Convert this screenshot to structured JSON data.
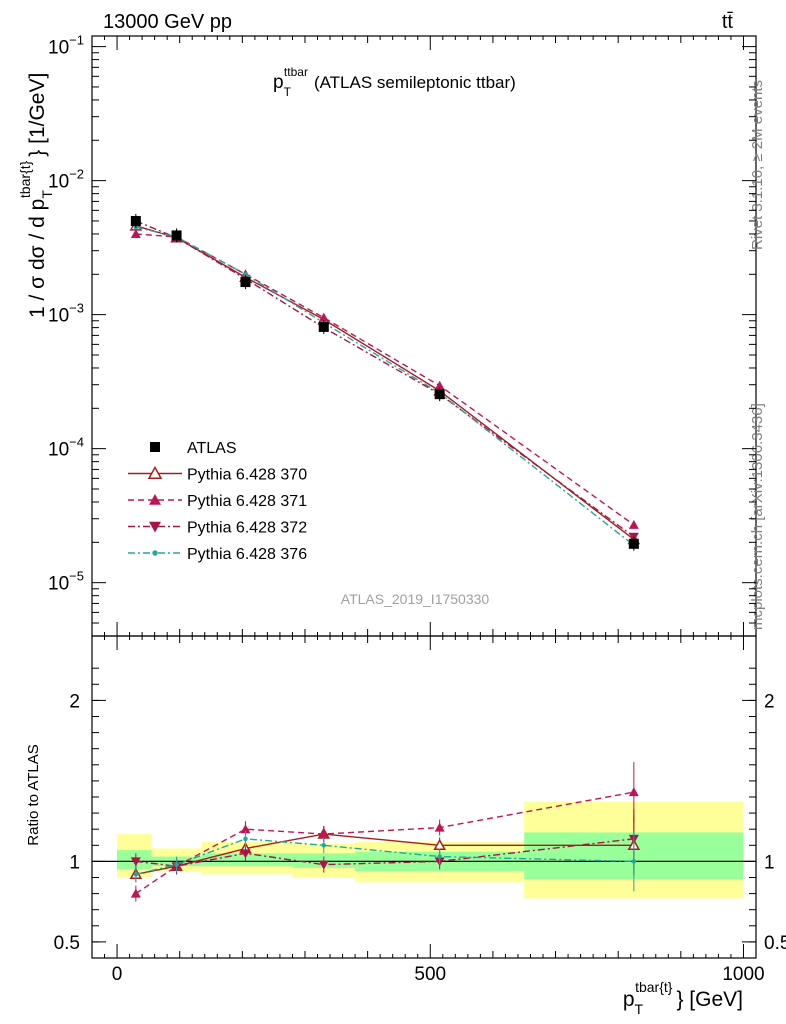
{
  "header": {
    "left": "13000 GeV pp",
    "right": "tt̄"
  },
  "title": {
    "main": "p",
    "sub": "T",
    "sup": "ttbar",
    "rest": "(ATLAS semileptonic ttbar)"
  },
  "side_labels": {
    "rivet": "Rivet 3.1.10, ≥ 2M events",
    "mcplots": "mcplots.cern.ch [arXiv:1306.3436]"
  },
  "watermark": "ATLAS_2019_I1750330",
  "chart_data": [
    {
      "type": "scatter",
      "ylabel": {
        "pre": "1 / σ dσ / d p",
        "sub": "T",
        "sup": "tbar{t}",
        "post": "} [1/GeV]"
      },
      "yscale": "log",
      "ylim": [
        4e-06,
        0.12
      ],
      "xlim": [
        -40,
        1020
      ],
      "yticks": [
        {
          "base": "10",
          "exp": "−5",
          "value": 1e-05
        },
        {
          "base": "10",
          "exp": "−4",
          "value": 0.0001
        },
        {
          "base": "10",
          "exp": "−3",
          "value": 0.001
        },
        {
          "base": "10",
          "exp": "−2",
          "value": 0.01
        },
        {
          "base": "10",
          "exp": "−1",
          "value": 0.1
        }
      ],
      "x": [
        30,
        95,
        205,
        330,
        515,
        825
      ],
      "series": [
        {
          "name": "ATLAS",
          "color": "#000000",
          "style": "data",
          "values": [
            0.005,
            0.0039,
            0.00175,
            0.00081,
            0.000255,
            1.95e-05
          ]
        },
        {
          "name": "Pythia 6.428 370",
          "color": "#a51e1e",
          "style": "solid",
          "marker": "open-triangle",
          "values": [
            0.0046,
            0.00375,
            0.0019,
            0.00092,
            0.00027,
            2.1e-05
          ]
        },
        {
          "name": "Pythia 6.428 371",
          "color": "#c0145a",
          "style": "dashed",
          "marker": "triangle",
          "values": [
            0.004,
            0.0038,
            0.002,
            0.00095,
            0.000295,
            2.7e-05
          ]
        },
        {
          "name": "Pythia 6.428 372",
          "color": "#a8154a",
          "style": "dashdot",
          "marker": "triangle-down",
          "values": [
            0.005,
            0.00375,
            0.00185,
            0.0008,
            0.000255,
            2.2e-05
          ]
        },
        {
          "name": "Pythia 6.428 376",
          "color": "#20a8a0",
          "style": "dashdot",
          "marker": "dot",
          "values": [
            0.0045,
            0.0038,
            0.002,
            0.00087,
            0.00026,
            1.9e-05
          ]
        }
      ]
    },
    {
      "type": "scatter",
      "xlabel": {
        "pre": "p",
        "sub": "T",
        "sup": "tbar{t}",
        "post": "} [GeV]"
      },
      "ylabel": "Ratio to ATLAS",
      "ylim": [
        0.4,
        2.4
      ],
      "xlim": [
        -40,
        1020
      ],
      "xticks": [
        {
          "label": "0",
          "value": 0
        },
        {
          "label": "500",
          "value": 500
        },
        {
          "label": "1000",
          "value": 1000
        }
      ],
      "yticks": [
        {
          "label": "0.5",
          "value": 0.5
        },
        {
          "label": "1",
          "value": 1
        },
        {
          "label": "2",
          "value": 2
        }
      ],
      "bands": [
        {
          "x0": 0,
          "x1": 55,
          "stat_lo": 0.95,
          "stat_hi": 1.07,
          "tot_lo": 0.9,
          "tot_hi": 1.17
        },
        {
          "x0": 55,
          "x1": 135,
          "stat_lo": 0.97,
          "stat_hi": 1.03,
          "tot_lo": 0.94,
          "tot_hi": 1.08
        },
        {
          "x0": 135,
          "x1": 280,
          "stat_lo": 0.97,
          "stat_hi": 1.05,
          "tot_lo": 0.92,
          "tot_hi": 1.12
        },
        {
          "x0": 280,
          "x1": 380,
          "stat_lo": 0.96,
          "stat_hi": 1.05,
          "tot_lo": 0.9,
          "tot_hi": 1.11
        },
        {
          "x0": 380,
          "x1": 650,
          "stat_lo": 0.94,
          "stat_hi": 1.06,
          "tot_lo": 0.87,
          "tot_hi": 1.12
        },
        {
          "x0": 650,
          "x1": 1000,
          "stat_lo": 0.89,
          "stat_hi": 1.18,
          "tot_lo": 0.77,
          "tot_hi": 1.37
        }
      ],
      "x": [
        30,
        95,
        205,
        330,
        515,
        825
      ],
      "series": [
        {
          "name": "Pythia 6.428 370",
          "color": "#a51e1e",
          "style": "solid",
          "marker": "open-triangle",
          "values": [
            0.92,
            0.97,
            1.08,
            1.17,
            1.1,
            1.1
          ]
        },
        {
          "name": "Pythia 6.428 371",
          "color": "#c0145a",
          "style": "dashed",
          "marker": "triangle",
          "values": [
            0.8,
            0.97,
            1.2,
            1.17,
            1.21,
            1.43
          ]
        },
        {
          "name": "Pythia 6.428 372",
          "color": "#a8154a",
          "style": "dashdot",
          "marker": "triangle-down",
          "values": [
            1.0,
            0.97,
            1.05,
            0.98,
            1.0,
            1.14
          ]
        },
        {
          "name": "Pythia 6.428 376",
          "color": "#20a8a0",
          "style": "dashdot",
          "marker": "dot",
          "values": [
            0.92,
            0.98,
            1.14,
            1.1,
            1.03,
            1.0
          ]
        }
      ]
    }
  ]
}
